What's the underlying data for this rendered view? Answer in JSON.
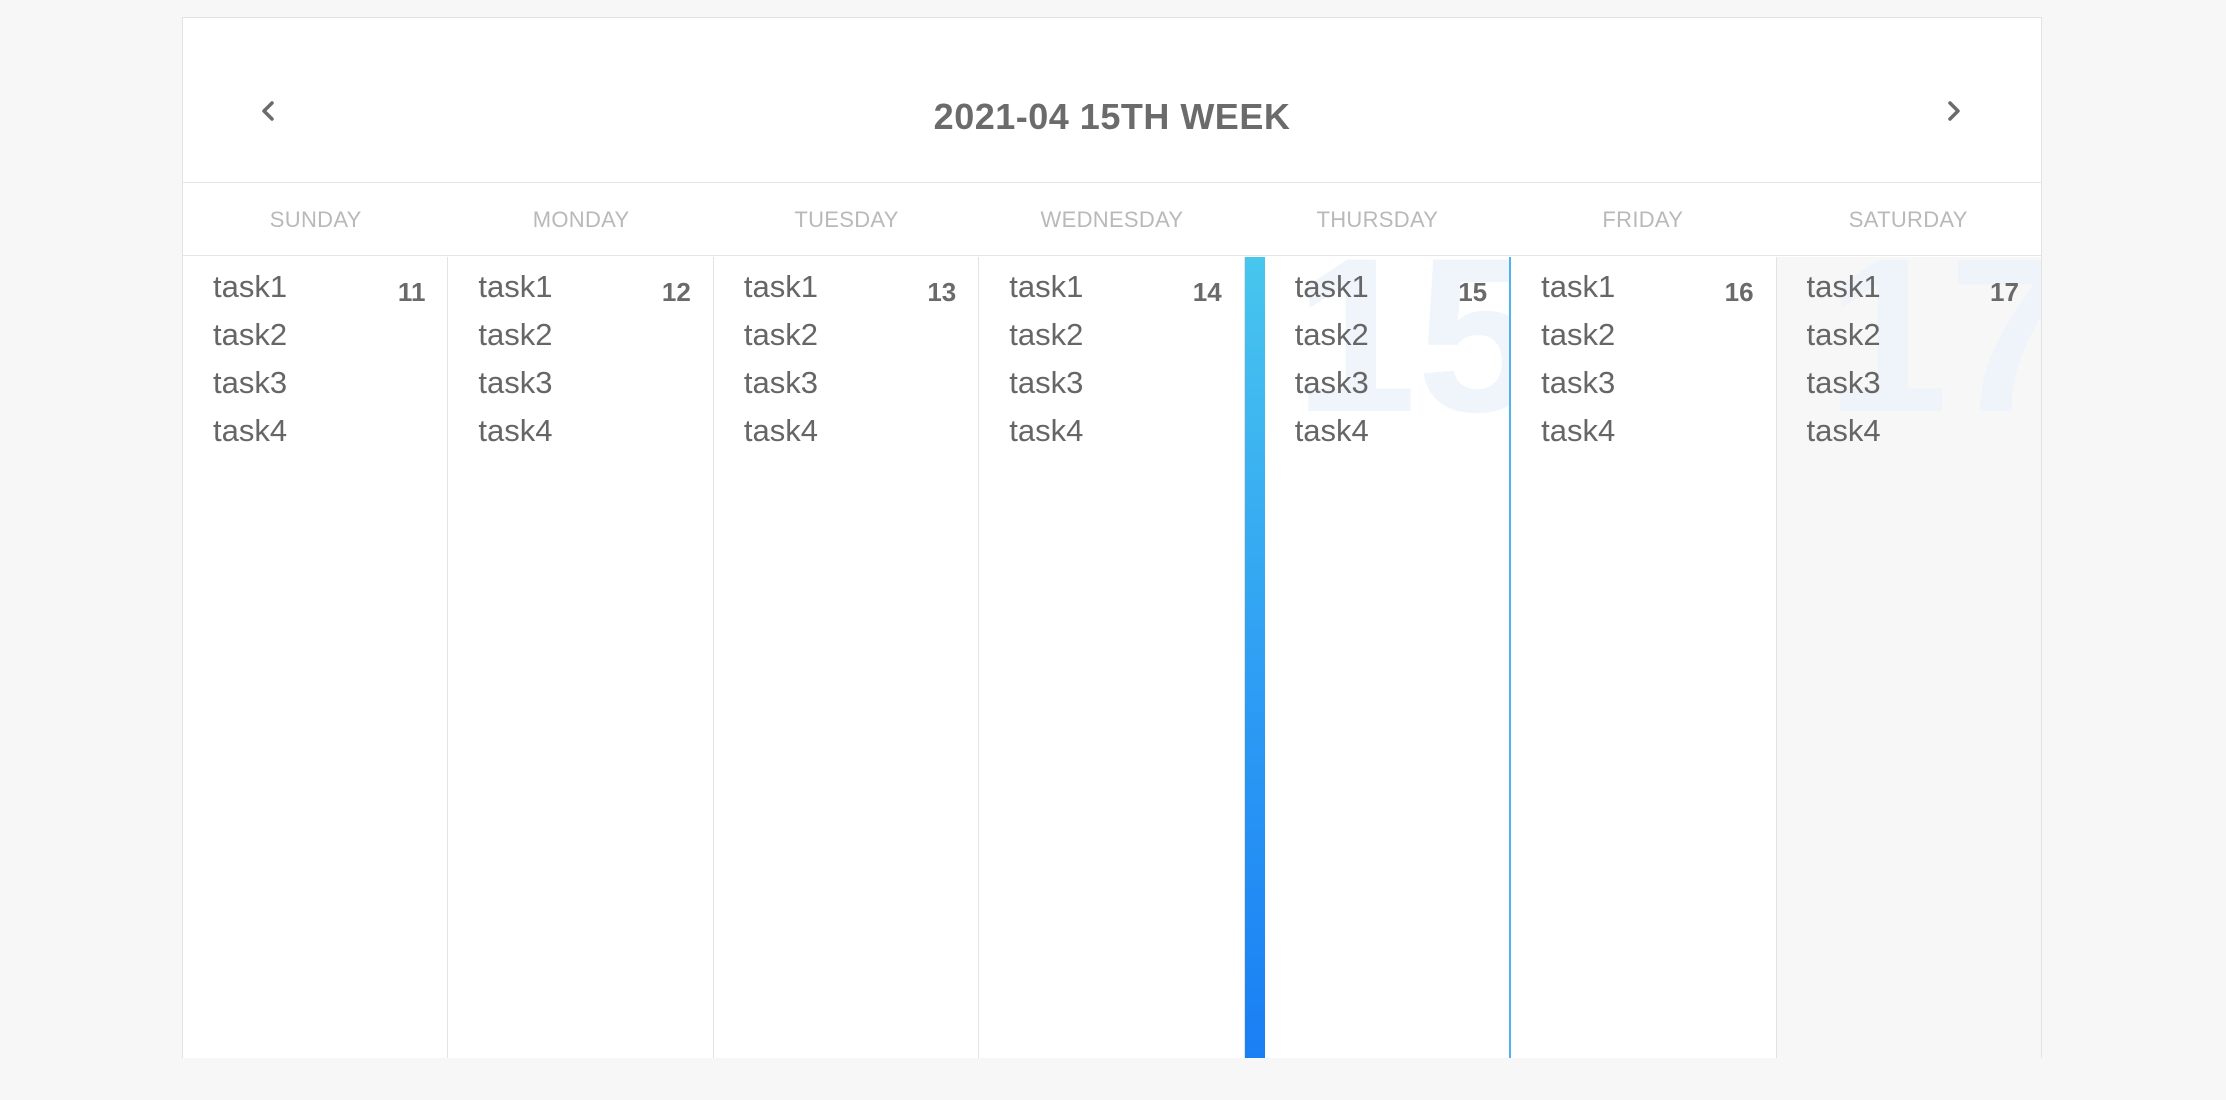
{
  "header": {
    "title": "2021-04 15TH WEEK",
    "prev_icon": "chevron-left-icon",
    "next_icon": "chevron-right-icon"
  },
  "weekdays": [
    "SUNDAY",
    "MONDAY",
    "TUESDAY",
    "WEDNESDAY",
    "THURSDAY",
    "FRIDAY",
    "SATURDAY"
  ],
  "days": [
    {
      "date": "11",
      "tasks": [
        "task1",
        "task2",
        "task3",
        "task4"
      ]
    },
    {
      "date": "12",
      "tasks": [
        "task1",
        "task2",
        "task3",
        "task4"
      ]
    },
    {
      "date": "13",
      "tasks": [
        "task1",
        "task2",
        "task3",
        "task4"
      ]
    },
    {
      "date": "14",
      "tasks": [
        "task1",
        "task2",
        "task3",
        "task4"
      ]
    },
    {
      "date": "15",
      "tasks": [
        "task1",
        "task2",
        "task3",
        "task4"
      ]
    },
    {
      "date": "16",
      "tasks": [
        "task1",
        "task2",
        "task3",
        "task4"
      ]
    },
    {
      "date": "17",
      "tasks": [
        "task1",
        "task2",
        "task3",
        "task4"
      ]
    }
  ],
  "today_index": 4,
  "colors": {
    "accent": "#2d9cf4",
    "accent_light": "#48c6ee",
    "title_text": "#6b6b6b",
    "weekday_text": "#b9b9b9",
    "task_text": "#666666",
    "watermark": "#eef4fb"
  }
}
